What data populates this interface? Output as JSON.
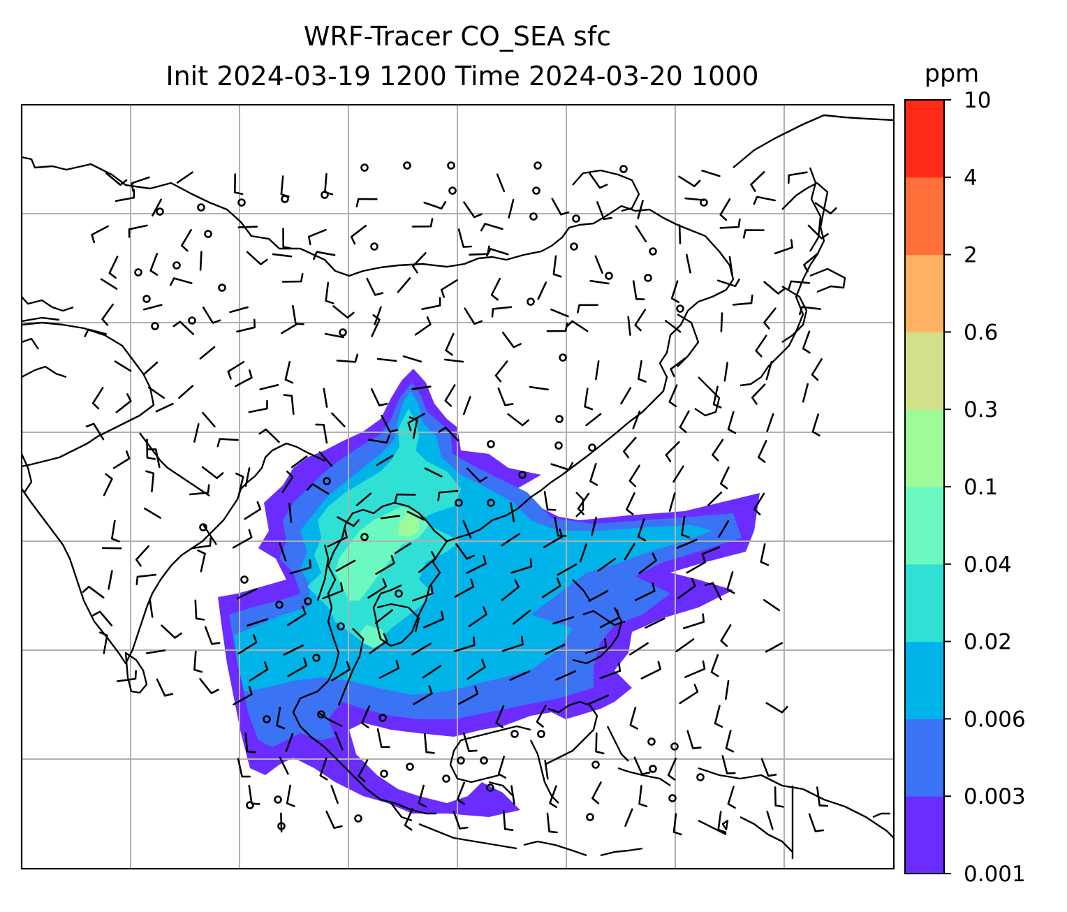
{
  "figure": {
    "title_line1": "WRF-Tracer CO_SEA sfc",
    "title_line2": "Init 2024-03-19 1200 Time 2024-03-20 1000"
  },
  "colorbar": {
    "unit": "ppm",
    "levels": [
      "0.001",
      "0.003",
      "0.006",
      "0.02",
      "0.04",
      "0.1",
      "0.3",
      "0.6",
      "2",
      "4",
      "10"
    ],
    "colors": [
      "#6a2cff",
      "#3a74f5",
      "#00b4ea",
      "#30e0d4",
      "#6cf9bf",
      "#9ffa99",
      "#d2e08a",
      "#fdb163",
      "#ff703a",
      "#ff2b18"
    ]
  },
  "map": {
    "gridlines": true,
    "grid_color": "#b0b0b0",
    "coastline_color": "#000000",
    "wind_barbs": true,
    "tracer_plume_colors": {
      "outer": "#6a2cff",
      "mid": "#3a74f5",
      "inner": "#00b4ea",
      "core": "#30e0d4",
      "peak": "#6cf9bf",
      "max": "#9ffa99"
    }
  }
}
